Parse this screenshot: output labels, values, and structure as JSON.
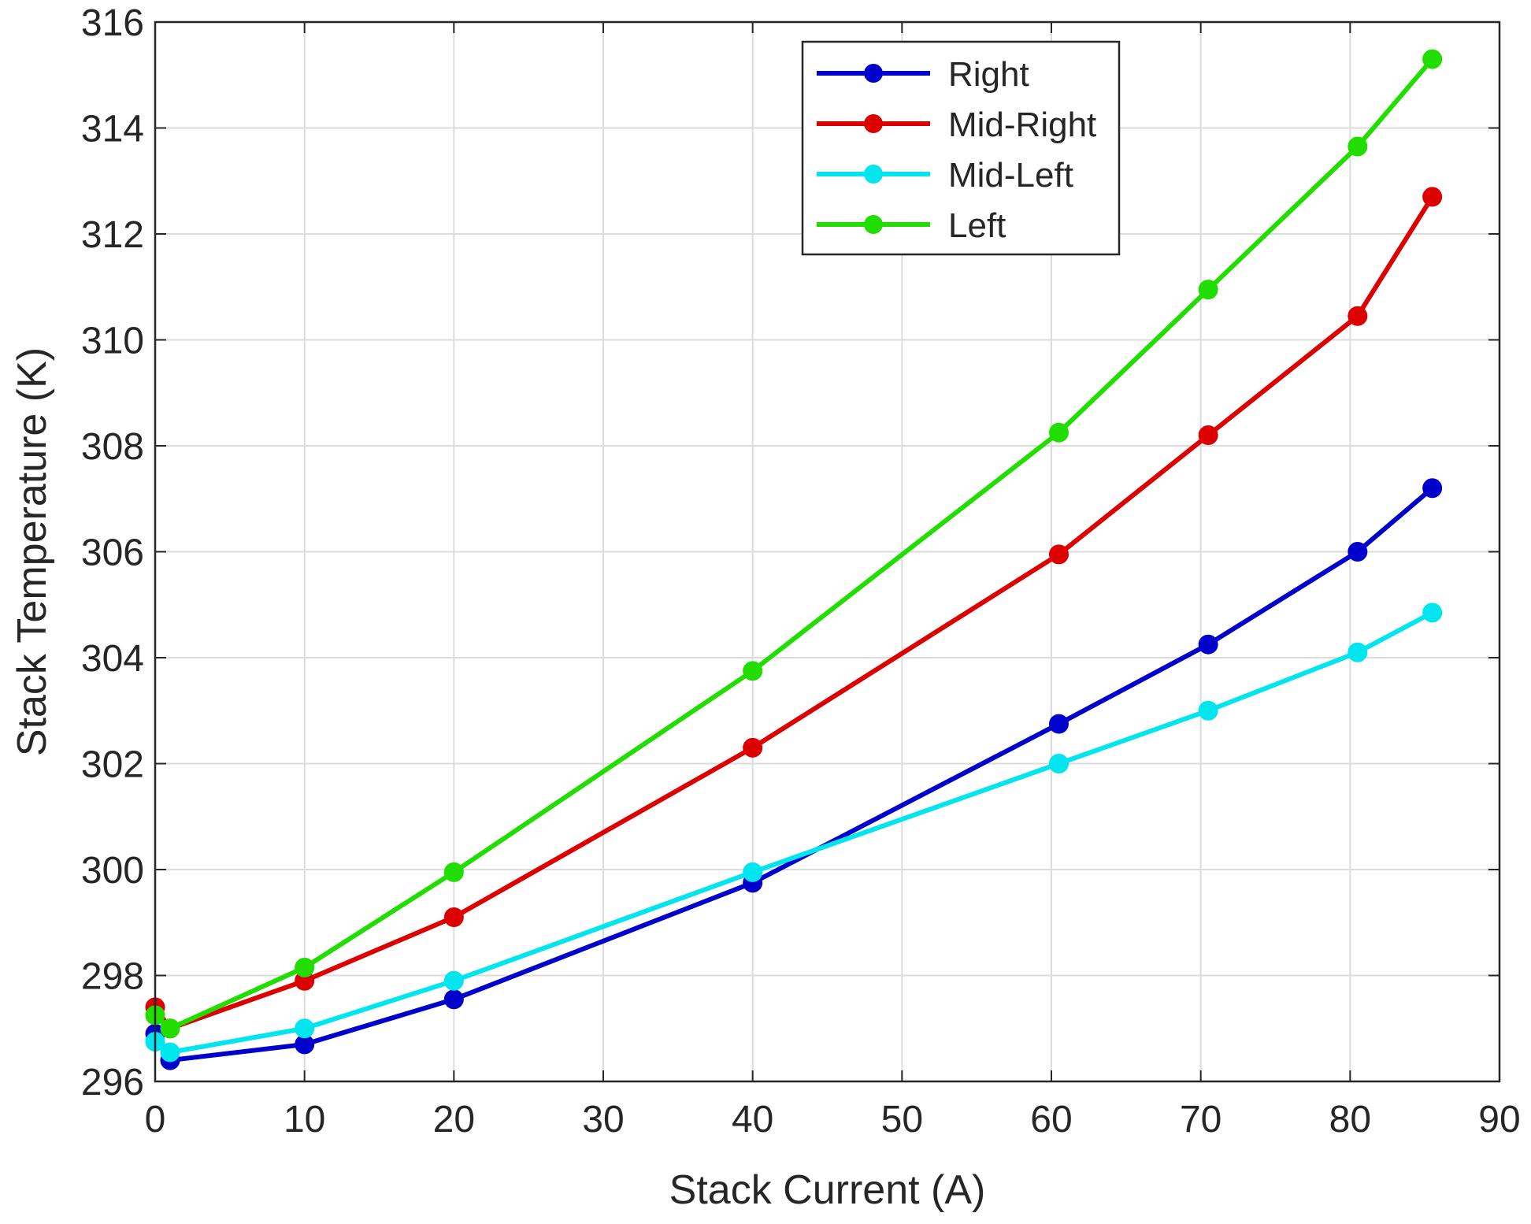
{
  "chart_data": {
    "type": "line",
    "title": "",
    "xlabel": "Stack Current (A)",
    "ylabel": "Stack Temperature (K)",
    "xlim": [
      0,
      90
    ],
    "ylim": [
      296,
      316
    ],
    "xticks": [
      0,
      10,
      20,
      30,
      40,
      50,
      60,
      70,
      80,
      90
    ],
    "yticks": [
      296,
      298,
      300,
      302,
      304,
      306,
      308,
      310,
      312,
      314,
      316
    ],
    "grid": true,
    "legend_position": "top-right",
    "series": [
      {
        "name": "Right",
        "color": "#0000CC",
        "marker": "circle",
        "x": [
          0,
          1,
          10,
          20,
          40,
          60.5,
          70.5,
          80.5,
          85.5
        ],
        "y": [
          296.9,
          296.4,
          296.7,
          297.55,
          299.75,
          302.75,
          304.25,
          306.0,
          307.2
        ]
      },
      {
        "name": "Mid-Right",
        "color": "#DD0000",
        "marker": "circle",
        "x": [
          0,
          1,
          10,
          20,
          40,
          60.5,
          70.5,
          80.5,
          85.5
        ],
        "y": [
          297.4,
          297.0,
          297.9,
          299.1,
          302.3,
          305.95,
          308.2,
          310.45,
          312.7
        ]
      },
      {
        "name": "Mid-Left",
        "color": "#00E5EE",
        "marker": "circle",
        "x": [
          0,
          1,
          10,
          20,
          40,
          60.5,
          70.5,
          80.5,
          85.5
        ],
        "y": [
          296.75,
          296.55,
          297.0,
          297.9,
          299.95,
          302.0,
          303.0,
          304.1,
          304.85
        ]
      },
      {
        "name": "Left",
        "color": "#22DD00",
        "marker": "circle",
        "x": [
          0,
          1,
          10,
          20,
          40,
          60.5,
          70.5,
          80.5,
          85.5
        ],
        "y": [
          297.25,
          297.0,
          298.15,
          299.95,
          303.75,
          308.25,
          310.95,
          313.65,
          315.3
        ]
      }
    ]
  }
}
